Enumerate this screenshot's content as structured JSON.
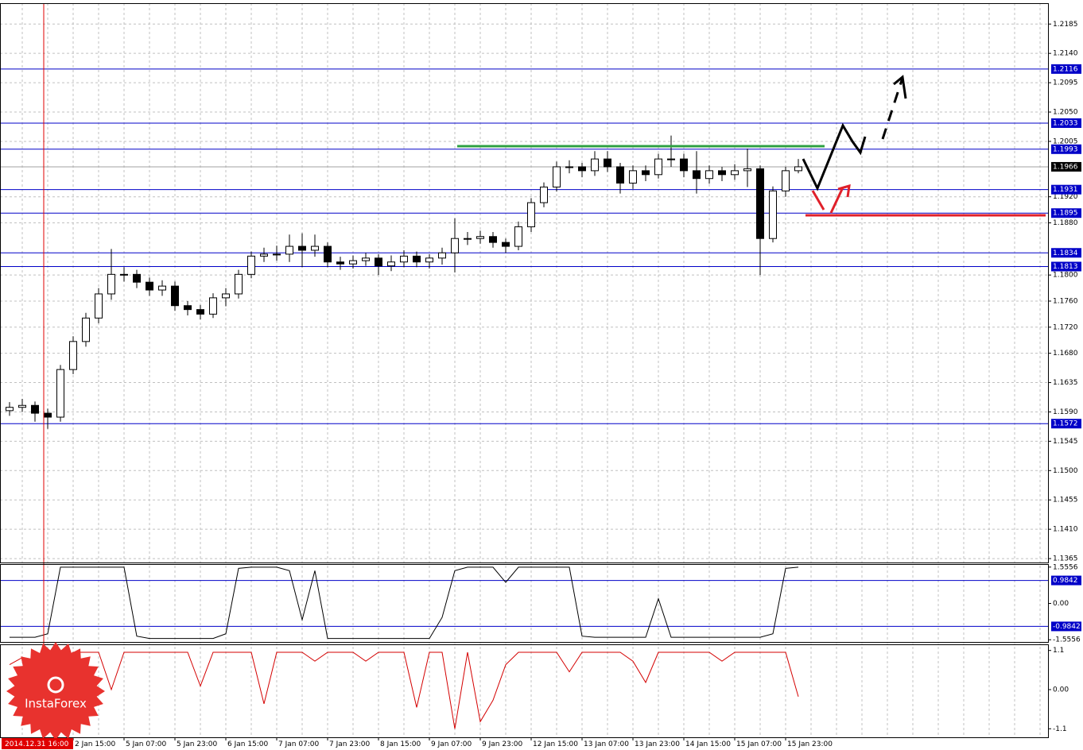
{
  "chart_data": [
    {
      "type": "candlestick",
      "marker_label": "2014.12.31 16:00",
      "categories": [
        null,
        null,
        null,
        null,
        null,
        "2 Jan 15:00",
        null,
        null,
        null,
        "5 Jan 07:00",
        null,
        null,
        null,
        "5 Jan 23:00",
        null,
        null,
        null,
        "6 Jan 15:00",
        null,
        null,
        null,
        "7 Jan 07:00",
        null,
        null,
        null,
        "7 Jan 23:00",
        null,
        null,
        null,
        "8 Jan 15:00",
        null,
        null,
        null,
        "9 Jan 07:00",
        null,
        null,
        null,
        "9 Jan 23:00",
        null,
        null,
        null,
        "12 Jan 15:00",
        null,
        null,
        null,
        "13 Jan 07:00",
        null,
        null,
        null,
        "13 Jan 23:00",
        null,
        null,
        null,
        "14 Jan 15:00",
        null,
        null,
        null,
        "15 Jan 07:00",
        null,
        null,
        null,
        "15 Jan 23:00",
        null
      ],
      "open": [
        1.1592,
        1.1597,
        1.16,
        1.1588,
        1.1582,
        1.1655,
        1.1698,
        1.1734,
        1.1771,
        1.1801,
        1.1801,
        1.1789,
        1.1777,
        1.1783,
        1.1753,
        1.1747,
        1.174,
        1.1765,
        1.1771,
        1.1801,
        1.1829,
        1.1832,
        1.1832,
        1.1844,
        1.1838,
        1.1844,
        1.182,
        1.1817,
        1.1822,
        1.1826,
        1.1814,
        1.182,
        1.1829,
        1.182,
        1.1826,
        1.1834,
        1.1856,
        1.1856,
        1.1859,
        1.185,
        1.1844,
        1.1874,
        1.1911,
        1.1935,
        1.1966,
        1.1966,
        1.196,
        1.1978,
        1.1966,
        1.1941,
        1.196,
        1.1954,
        1.1978,
        1.1978,
        1.196,
        1.1948,
        1.196,
        1.1954,
        1.196,
        1.1963,
        1.1856,
        1.1929,
        1.196
      ],
      "high": [
        1.1605,
        1.161,
        1.1606,
        1.1595,
        1.1662,
        1.1706,
        1.1742,
        1.178,
        1.184,
        1.1812,
        1.1808,
        1.1796,
        1.1792,
        1.179,
        1.176,
        1.1754,
        1.1772,
        1.178,
        1.1808,
        1.1836,
        1.1842,
        1.1845,
        1.1862,
        1.1864,
        1.1862,
        1.185,
        1.1828,
        1.183,
        1.1834,
        1.1832,
        1.183,
        1.1838,
        1.1836,
        1.1832,
        1.1842,
        1.1887,
        1.1866,
        1.1868,
        1.1866,
        1.1856,
        1.1882,
        1.1918,
        1.1942,
        1.1974,
        1.1976,
        1.1972,
        1.199,
        1.199,
        1.1972,
        1.1968,
        1.1968,
        1.1986,
        1.2014,
        1.1986,
        1.199,
        1.1968,
        1.1966,
        1.197,
        1.1994,
        1.1968,
        1.1936,
        1.1966,
        1.1978
      ],
      "low": [
        1.1584,
        1.159,
        1.1575,
        1.1564,
        1.1575,
        1.1648,
        1.169,
        1.1726,
        1.1762,
        1.179,
        1.178,
        1.1768,
        1.1768,
        1.1745,
        1.1738,
        1.1732,
        1.1734,
        1.1752,
        1.1764,
        1.1795,
        1.182,
        1.1822,
        1.182,
        1.1812,
        1.1828,
        1.1812,
        1.1808,
        1.181,
        1.1814,
        1.18,
        1.1806,
        1.1812,
        1.1812,
        1.181,
        1.1816,
        1.1804,
        1.1846,
        1.1848,
        1.1842,
        1.1834,
        1.1838,
        1.1866,
        1.1904,
        1.1928,
        1.1956,
        1.195,
        1.1952,
        1.1958,
        1.1925,
        1.1932,
        1.1944,
        1.1948,
        1.1966,
        1.195,
        1.1925,
        1.194,
        1.1944,
        1.1946,
        1.1935,
        1.18,
        1.185,
        1.192,
        1.1956
      ],
      "close": [
        1.1597,
        1.16,
        1.1588,
        1.1582,
        1.1655,
        1.1698,
        1.1734,
        1.1771,
        1.1801,
        1.1801,
        1.1789,
        1.1777,
        1.1783,
        1.1753,
        1.1747,
        1.174,
        1.1765,
        1.1771,
        1.1801,
        1.1829,
        1.1832,
        1.1832,
        1.1844,
        1.1838,
        1.1844,
        1.182,
        1.1817,
        1.1822,
        1.1826,
        1.1814,
        1.182,
        1.1829,
        1.182,
        1.1826,
        1.1834,
        1.1856,
        1.1856,
        1.1859,
        1.185,
        1.1844,
        1.1874,
        1.1911,
        1.1935,
        1.1966,
        1.1966,
        1.196,
        1.1978,
        1.1966,
        1.1941,
        1.196,
        1.1954,
        1.1978,
        1.1978,
        1.196,
        1.1948,
        1.196,
        1.1954,
        1.196,
        1.1963,
        1.1856,
        1.1929,
        1.196,
        1.1966
      ],
      "ylim": [
        1.1359,
        1.2217
      ],
      "yticks": [
        1.2185,
        {
          "value": 1.214,
          "label": "1.2140"
        },
        1.2095,
        {
          "value": 1.205,
          "label": "1.2050"
        },
        1.2005,
        {
          "value": 1.192,
          "label": "1.1920"
        },
        {
          "value": 1.188,
          "label": "1.1880"
        },
        {
          "value": 1.18,
          "label": "1.1800"
        },
        {
          "value": 1.176,
          "label": "1.1760"
        },
        {
          "value": 1.172,
          "label": "1.1720"
        },
        {
          "value": 1.168,
          "label": "1.1680"
        },
        1.1635,
        {
          "value": 1.159,
          "label": "1.1590"
        },
        1.1545,
        {
          "value": 1.15,
          "label": "1.1500"
        },
        1.1455,
        {
          "value": 1.141,
          "label": "1.1410"
        },
        1.1365
      ],
      "levels": [
        1.2116,
        1.2033,
        1.1993,
        1.1931,
        1.1895,
        1.1834,
        1.1813,
        1.1572
      ],
      "current_price": 1.1966,
      "grid": true
    },
    {
      "type": "line",
      "color": "#000000",
      "values": [
        -1.45,
        -1.45,
        -1.45,
        -1.3,
        1.55,
        1.55,
        1.55,
        1.55,
        1.55,
        1.55,
        -1.4,
        -1.5,
        -1.5,
        -1.5,
        -1.5,
        -1.5,
        -1.5,
        -1.3,
        1.5,
        1.55,
        1.55,
        1.55,
        1.4,
        -0.7,
        1.4,
        -1.5,
        -1.5,
        -1.5,
        -1.5,
        -1.5,
        -1.5,
        -1.5,
        -1.5,
        -1.5,
        -0.6,
        1.4,
        1.55,
        1.55,
        1.55,
        0.9,
        1.55,
        1.55,
        1.55,
        1.55,
        1.55,
        -1.4,
        -1.45,
        -1.45,
        -1.45,
        -1.45,
        -1.45,
        0.2,
        -1.45,
        -1.45,
        -1.45,
        -1.45,
        -1.45,
        -1.45,
        -1.45,
        -1.45,
        -1.3,
        1.5,
        1.55
      ],
      "ylim": [
        -1.65,
        1.65
      ],
      "yticks": [
        1.5556,
        {
          "value": 0,
          "label": "0.00"
        },
        -1.5556
      ],
      "levels": [
        0.9842,
        -0.9842
      ]
    },
    {
      "type": "line",
      "color": "#d40000",
      "values": [
        0.7,
        0.9,
        0.6,
        1.0,
        0.8,
        1.05,
        1.05,
        1.05,
        0.0,
        1.05,
        1.05,
        1.05,
        1.05,
        1.05,
        1.05,
        0.1,
        1.05,
        1.05,
        1.05,
        1.05,
        -0.4,
        1.05,
        1.05,
        1.05,
        0.8,
        1.05,
        1.05,
        1.05,
        0.8,
        1.05,
        1.05,
        1.05,
        -0.5,
        1.05,
        1.05,
        -1.1,
        1.05,
        -0.9,
        -0.3,
        0.7,
        1.05,
        1.05,
        1.05,
        1.05,
        0.5,
        1.05,
        1.05,
        1.05,
        1.05,
        0.8,
        0.2,
        1.05,
        1.05,
        1.05,
        1.05,
        1.05,
        0.8,
        1.05,
        1.05,
        1.05,
        1.05,
        1.05,
        -0.2
      ],
      "ylim": [
        -1.34,
        1.25
      ],
      "yticks": [
        1.1,
        {
          "value": 0,
          "label": "0.00"
        },
        -1.1
      ]
    }
  ],
  "logo": "InstaForex"
}
